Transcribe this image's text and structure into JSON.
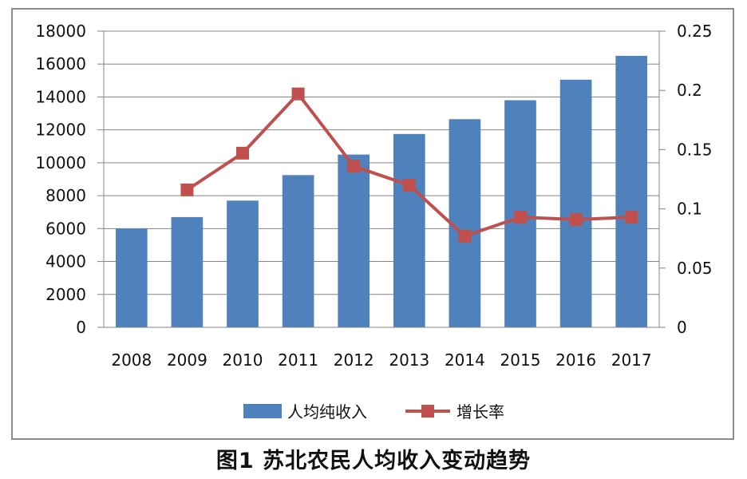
{
  "caption": "图1  苏北农民人均收入变动趋势",
  "colors": {
    "bar": "#4F81BD",
    "line": "#C0504D",
    "grid": "#868686",
    "axis": "#868686",
    "frame": "#8c8c8c"
  },
  "chart_data": {
    "type": "bar",
    "categories": [
      "2008",
      "2009",
      "2010",
      "2011",
      "2012",
      "2013",
      "2014",
      "2015",
      "2016",
      "2017"
    ],
    "series": [
      {
        "name": "人均纯收入",
        "type": "bar",
        "axis": "left",
        "values": [
          6000,
          6700,
          7700,
          9250,
          10500,
          11750,
          12650,
          13800,
          15050,
          16500
        ]
      },
      {
        "name": "增长率",
        "type": "line",
        "axis": "right",
        "marker": "square",
        "values": [
          null,
          0.116,
          0.147,
          0.197,
          0.136,
          0.12,
          0.077,
          0.093,
          0.091,
          0.093
        ]
      }
    ],
    "y_left": {
      "ylim": [
        0,
        18000
      ],
      "ticks": [
        "0",
        "2000",
        "4000",
        "6000",
        "8000",
        "10000",
        "12000",
        "14000",
        "16000",
        "18000"
      ]
    },
    "y_right": {
      "ylim": [
        0,
        0.25
      ],
      "ticks": [
        "0",
        "0.05",
        "0.1",
        "0.15",
        "0.2",
        "0.25"
      ]
    },
    "grid": true,
    "legend_position": "bottom"
  }
}
